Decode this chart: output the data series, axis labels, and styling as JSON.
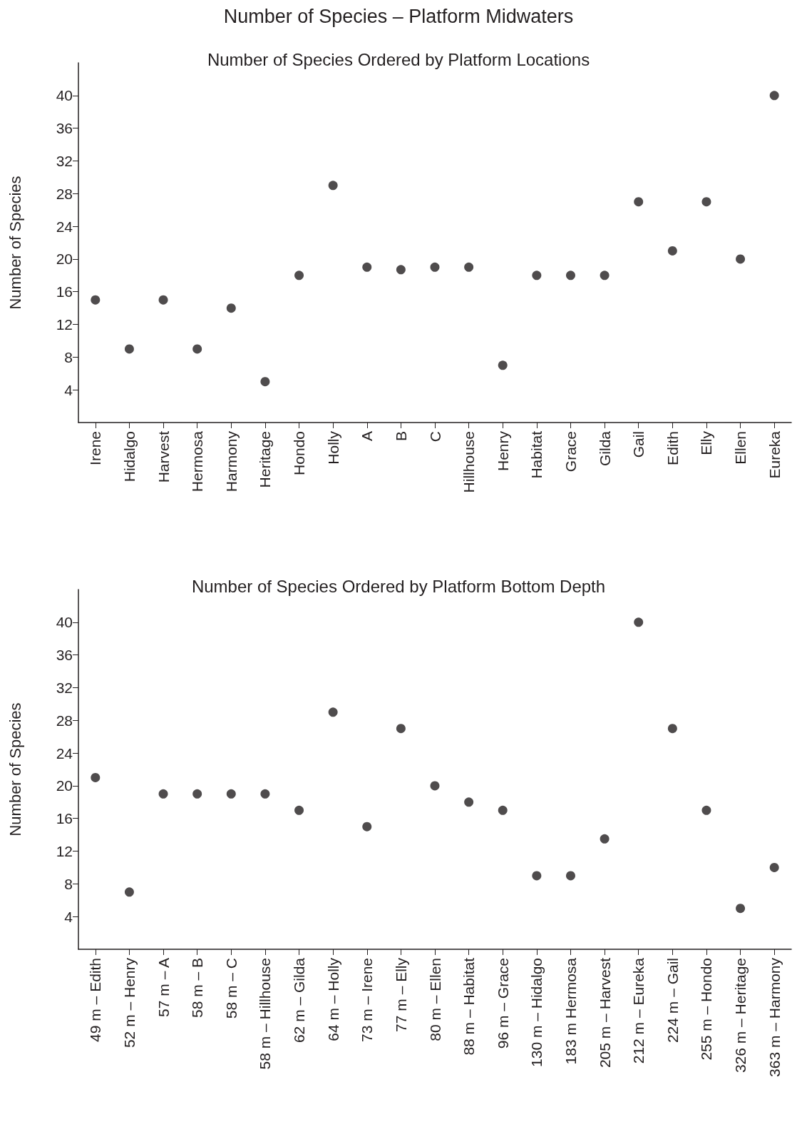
{
  "chart_data": [
    {
      "type": "scatter",
      "title": "Number of Species – Platform Midwaters",
      "subtitle": "Number of Species Ordered by Platform Locations",
      "ylabel": "Number of Species",
      "categories": [
        "Irene",
        "Hidalgo",
        "Harvest",
        "Hermosa",
        "Harmony",
        "Heritage",
        "Hondo",
        "Holly",
        "A",
        "B",
        "C",
        "Hillhouse",
        "Henry",
        "Habitat",
        "Grace",
        "Gilda",
        "Gail",
        "Edith",
        "Elly",
        "Ellen",
        "Eureka"
      ],
      "series": [
        {
          "color": "#231f20",
          "values": [
            15,
            9,
            15,
            9,
            14,
            5,
            18,
            29,
            19,
            18.7,
            19,
            19,
            7,
            18,
            18,
            18,
            27,
            21,
            27,
            20,
            40
          ]
        }
      ],
      "ylim": [
        0,
        44
      ],
      "yticks": [
        4,
        8,
        12,
        16,
        20,
        24,
        28,
        32,
        36,
        40
      ],
      "grid": false,
      "marker": "circle"
    },
    {
      "type": "scatter",
      "title": "Number of Species Ordered by Platform Bottom Depth",
      "ylabel": "Number of Species",
      "categories": [
        "49 m – Edith",
        "52 m – Henry",
        "57 m – A",
        "58 m – B",
        "58 m – C",
        "58 m – Hillhouse",
        "62 m – Gilda",
        "64 m – Holly",
        "73 m – Irene",
        "77 m – Elly",
        "80 m – Ellen",
        "88 m – Habitat",
        "96 m – Grace",
        "130 m – Hidalgo",
        "183 m Hermosa",
        "205 m – Harvest",
        "212 m – Eureka",
        "224 m – Gail",
        "255 m – Hondo",
        "326 m – Heritage",
        "363 m – Harmony"
      ],
      "series": [
        {
          "color": "#231f20",
          "values": [
            21,
            7,
            19,
            19,
            19,
            19,
            17,
            29,
            15,
            27,
            20,
            18,
            17,
            9,
            9,
            13.5,
            40,
            27,
            17,
            5,
            10
          ]
        }
      ],
      "ylim": [
        0,
        44
      ],
      "yticks": [
        4,
        8,
        12,
        16,
        20,
        24,
        28,
        32,
        36,
        40
      ],
      "grid": false,
      "marker": "circle"
    }
  ]
}
